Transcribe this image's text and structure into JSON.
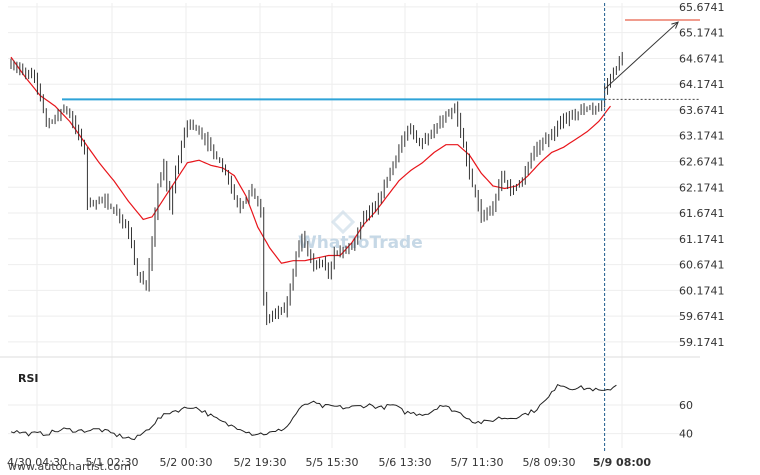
{
  "watermark": "WhatToTrade",
  "credit": "www.autochartist.com",
  "chart_data": [
    {
      "type": "candlestick",
      "title": "",
      "ylim": [
        58.9,
        65.75
      ],
      "y_ticks": [
        "65.6741",
        "65.1741",
        "64.6741",
        "64.1741",
        "63.6741",
        "63.1741",
        "62.6741",
        "62.1741",
        "61.6741",
        "61.1741",
        "60.6741",
        "60.1741",
        "59.6741",
        "59.1741"
      ],
      "x_ticks": [
        {
          "label": "4/30 04:30",
          "bold": false
        },
        {
          "label": "5/1 02:30",
          "bold": false
        },
        {
          "label": "5/2 00:30",
          "bold": false
        },
        {
          "label": "5/2 19:30",
          "bold": false
        },
        {
          "label": "5/5 15:30",
          "bold": false
        },
        {
          "label": "5/6 13:30",
          "bold": false
        },
        {
          "label": "5/7 11:30",
          "bold": false
        },
        {
          "label": "5/8 09:30",
          "bold": false
        },
        {
          "label": "5/9 08:00",
          "bold": true
        }
      ],
      "resistance_level": 63.88,
      "target_level": 65.42,
      "forecast_from": {
        "t": 202,
        "price": 64.08
      },
      "forecast_to": {
        "t": 227,
        "price": 65.38
      },
      "breakout_index": 202,
      "series": [
        {
          "kind": "close",
          "color": "#333333",
          "anchors": [
            [
              0,
              64.6
            ],
            [
              4,
              64.4
            ],
            [
              8,
              64.3
            ],
            [
              10,
              63.9
            ],
            [
              12,
              63.4
            ],
            [
              15,
              63.5
            ],
            [
              18,
              63.7
            ],
            [
              20,
              63.6
            ],
            [
              22,
              63.3
            ],
            [
              25,
              62.9
            ],
            [
              26,
              61.8
            ],
            [
              28,
              61.9
            ],
            [
              32,
              61.9
            ],
            [
              36,
              61.7
            ],
            [
              40,
              61.3
            ],
            [
              43,
              60.5
            ],
            [
              46,
              60.3
            ],
            [
              48,
              61.1
            ],
            [
              50,
              62.2
            ],
            [
              52,
              62.6
            ],
            [
              54,
              61.8
            ],
            [
              56,
              62.5
            ],
            [
              58,
              63.0
            ],
            [
              60,
              63.4
            ],
            [
              64,
              63.3
            ],
            [
              68,
              62.9
            ],
            [
              72,
              62.6
            ],
            [
              76,
              62.0
            ],
            [
              78,
              61.8
            ],
            [
              82,
              62.1
            ],
            [
              85,
              61.7
            ],
            [
              86,
              60.0
            ],
            [
              87,
              59.6
            ],
            [
              89,
              59.7
            ],
            [
              93,
              59.8
            ],
            [
              95,
              60.2
            ],
            [
              97,
              60.9
            ],
            [
              99,
              61.2
            ],
            [
              101,
              60.9
            ],
            [
              103,
              60.6
            ],
            [
              106,
              60.7
            ],
            [
              108,
              60.5
            ],
            [
              110,
              60.9
            ],
            [
              113,
              60.9
            ],
            [
              117,
              61.1
            ],
            [
              120,
              61.6
            ],
            [
              124,
              61.8
            ],
            [
              127,
              62.2
            ],
            [
              130,
              62.6
            ],
            [
              133,
              63.1
            ],
            [
              136,
              63.3
            ],
            [
              139,
              63.0
            ],
            [
              142,
              63.2
            ],
            [
              145,
              63.4
            ],
            [
              148,
              63.6
            ],
            [
              151,
              63.7
            ],
            [
              154,
              63.0
            ],
            [
              156,
              62.4
            ],
            [
              160,
              61.6
            ],
            [
              164,
              61.8
            ],
            [
              167,
              62.4
            ],
            [
              170,
              62.1
            ],
            [
              174,
              62.3
            ],
            [
              177,
              62.8
            ],
            [
              180,
              63.0
            ],
            [
              184,
              63.2
            ],
            [
              188,
              63.5
            ],
            [
              192,
              63.6
            ],
            [
              196,
              63.7
            ],
            [
              199,
              63.7
            ],
            [
              201,
              63.8
            ],
            [
              202,
              64.1
            ],
            [
              205,
              64.4
            ],
            [
              208,
              64.7
            ]
          ]
        },
        {
          "kind": "moving_average",
          "color": "#e8151b",
          "anchors": [
            [
              0,
              64.7
            ],
            [
              5,
              64.3
            ],
            [
              10,
              63.95
            ],
            [
              15,
              63.75
            ],
            [
              20,
              63.45
            ],
            [
              25,
              63.05
            ],
            [
              30,
              62.65
            ],
            [
              35,
              62.3
            ],
            [
              40,
              61.9
            ],
            [
              45,
              61.55
            ],
            [
              48,
              61.6
            ],
            [
              52,
              61.95
            ],
            [
              56,
              62.3
            ],
            [
              60,
              62.65
            ],
            [
              64,
              62.7
            ],
            [
              68,
              62.6
            ],
            [
              72,
              62.55
            ],
            [
              76,
              62.4
            ],
            [
              80,
              62.0
            ],
            [
              84,
              61.4
            ],
            [
              88,
              61.0
            ],
            [
              92,
              60.7
            ],
            [
              96,
              60.75
            ],
            [
              100,
              60.75
            ],
            [
              104,
              60.8
            ],
            [
              108,
              60.85
            ],
            [
              112,
              60.85
            ],
            [
              116,
              61.1
            ],
            [
              120,
              61.45
            ],
            [
              124,
              61.7
            ],
            [
              128,
              62.0
            ],
            [
              132,
              62.3
            ],
            [
              136,
              62.5
            ],
            [
              140,
              62.65
            ],
            [
              144,
              62.85
            ],
            [
              148,
              63.0
            ],
            [
              152,
              63.0
            ],
            [
              156,
              62.8
            ],
            [
              160,
              62.45
            ],
            [
              164,
              62.2
            ],
            [
              168,
              62.15
            ],
            [
              172,
              62.2
            ],
            [
              176,
              62.4
            ],
            [
              180,
              62.65
            ],
            [
              184,
              62.85
            ],
            [
              188,
              62.95
            ],
            [
              192,
              63.1
            ],
            [
              196,
              63.25
            ],
            [
              200,
              63.45
            ],
            [
              204,
              63.75
            ]
          ]
        }
      ]
    },
    {
      "type": "line",
      "title": "RSI",
      "ylim": [
        30,
        90
      ],
      "y_ticks": [
        60,
        40
      ],
      "series": [
        {
          "name": "RSI",
          "color": "#222222",
          "anchors": [
            [
              0,
              42
            ],
            [
              6,
              40
            ],
            [
              12,
              40
            ],
            [
              18,
              43
            ],
            [
              24,
              42
            ],
            [
              30,
              43
            ],
            [
              36,
              39
            ],
            [
              42,
              36
            ],
            [
              46,
              42
            ],
            [
              50,
              50
            ],
            [
              54,
              55
            ],
            [
              58,
              57
            ],
            [
              62,
              59
            ],
            [
              66,
              55
            ],
            [
              70,
              50
            ],
            [
              74,
              46
            ],
            [
              78,
              44
            ],
            [
              82,
              40
            ],
            [
              86,
              40
            ],
            [
              90,
              41
            ],
            [
              94,
              45
            ],
            [
              98,
              57
            ],
            [
              102,
              62
            ],
            [
              106,
              59
            ],
            [
              110,
              59
            ],
            [
              114,
              58
            ],
            [
              118,
              59
            ],
            [
              122,
              60
            ],
            [
              126,
              58
            ],
            [
              130,
              60
            ],
            [
              134,
              55
            ],
            [
              138,
              54
            ],
            [
              142,
              54
            ],
            [
              146,
              60
            ],
            [
              150,
              57
            ],
            [
              154,
              53
            ],
            [
              158,
              48
            ],
            [
              162,
              48
            ],
            [
              166,
              51
            ],
            [
              170,
              51
            ],
            [
              174,
              53
            ],
            [
              178,
              56
            ],
            [
              182,
              63
            ],
            [
              184,
              68
            ],
            [
              186,
              75
            ],
            [
              190,
              72
            ],
            [
              194,
              72
            ],
            [
              198,
              71
            ],
            [
              202,
              69
            ],
            [
              206,
              74
            ]
          ]
        }
      ]
    }
  ]
}
